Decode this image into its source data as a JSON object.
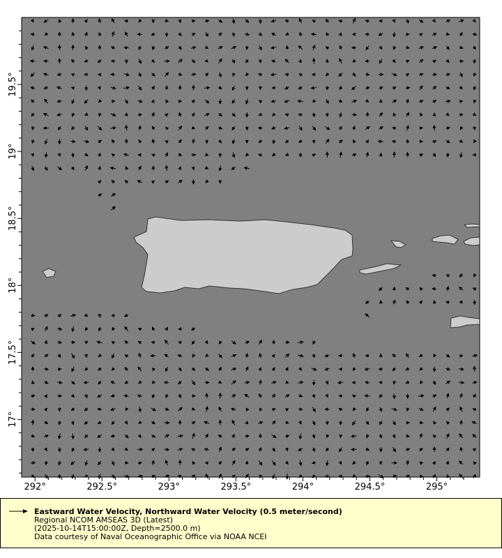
{
  "map": {
    "lon_range": [
      291.9,
      295.32
    ],
    "lat_range": [
      16.57,
      20.0
    ],
    "x_ticks": [
      {
        "value": 292,
        "label": "292°"
      },
      {
        "value": 292.5,
        "label": "292.5°"
      },
      {
        "value": 293,
        "label": "293°"
      },
      {
        "value": 293.5,
        "label": "293.5°"
      },
      {
        "value": 294,
        "label": "294°"
      },
      {
        "value": 294.5,
        "label": "294.5°"
      },
      {
        "value": 295,
        "label": "295°"
      }
    ],
    "y_ticks": [
      {
        "value": 17,
        "label": "17°"
      },
      {
        "value": 17.5,
        "label": "17.5°"
      },
      {
        "value": 18,
        "label": "18°"
      },
      {
        "value": 18.5,
        "label": "18.5°"
      },
      {
        "value": 19,
        "label": "19°"
      },
      {
        "value": 19.5,
        "label": "19.5°"
      }
    ],
    "grid_spacing_deg": 0.1,
    "colors": {
      "ocean": "#808080",
      "land": "#cccccc",
      "coast": "#333333",
      "vector": "#000000"
    }
  },
  "legend": {
    "title": "Eastward Water Velocity, Northward Water Velocity (0.5 meter/second)",
    "dataset": "Regional NCOM AMSEAS 3D (Latest)",
    "time_depth": "(2025-10-14T15:00:00Z, Depth=2500.0 m)",
    "credit": "Data courtesy of Naval Oceanographic Office via NOAA NCEI",
    "background": "#ffffcc"
  }
}
